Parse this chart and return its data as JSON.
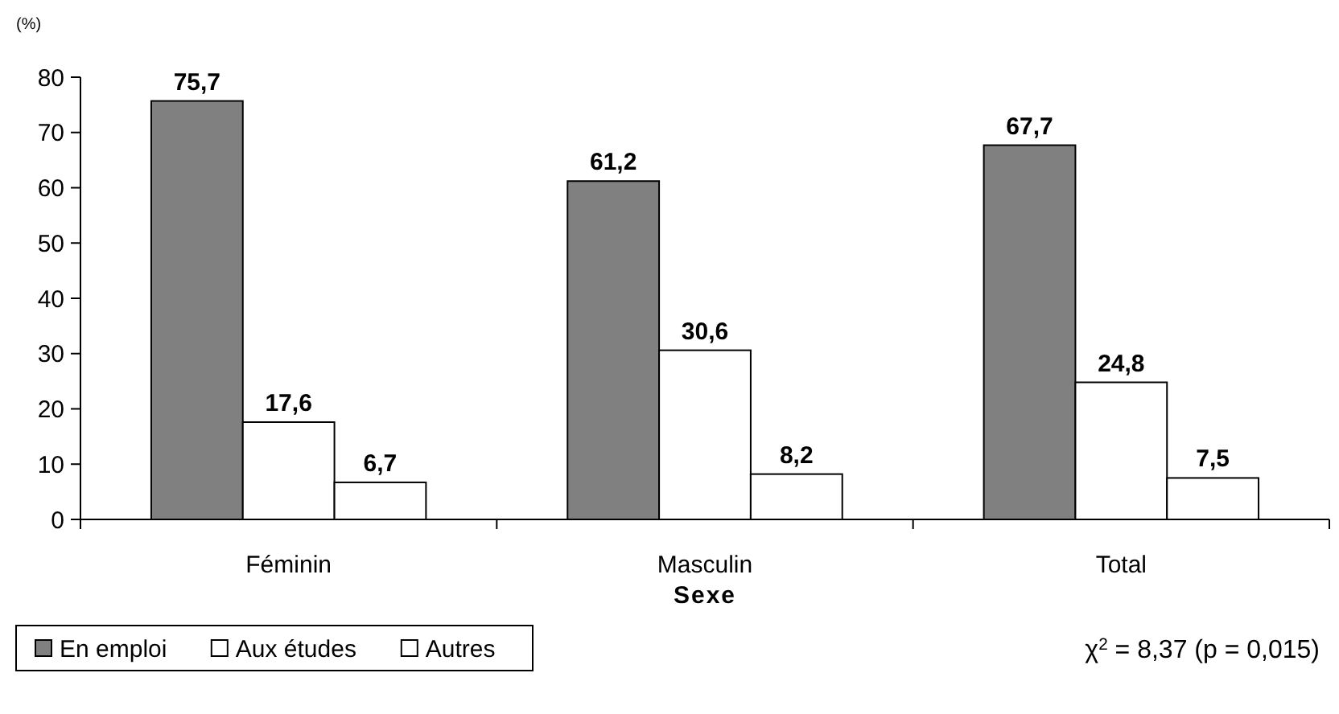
{
  "chart_data": {
    "type": "bar",
    "ylabel": "(%)",
    "xlabel": "Sexe",
    "categories": [
      "Féminin",
      "Masculin",
      "Total"
    ],
    "series": [
      {
        "name": "En emploi",
        "color": "#808080",
        "values": [
          75.7,
          61.2,
          67.7
        ],
        "value_labels": [
          "75,7",
          "61,2",
          "67,7"
        ]
      },
      {
        "name": "Aux études",
        "color": "#ffffff",
        "values": [
          17.6,
          30.6,
          24.8
        ],
        "value_labels": [
          "17,6",
          "30,6",
          "24,8"
        ]
      },
      {
        "name": "Autres",
        "color": "#ffffff",
        "values": [
          6.7,
          8.2,
          7.5
        ],
        "value_labels": [
          "6,7",
          "8,2",
          "7,5"
        ]
      }
    ],
    "ylim": [
      0,
      80
    ],
    "yticks": [
      0,
      10,
      20,
      30,
      40,
      50,
      60,
      70,
      80
    ],
    "grid": false,
    "legend": "bottom left",
    "annotations": [
      "χ$^{2}$ = 8,37 (p = 0,015)"
    ]
  }
}
